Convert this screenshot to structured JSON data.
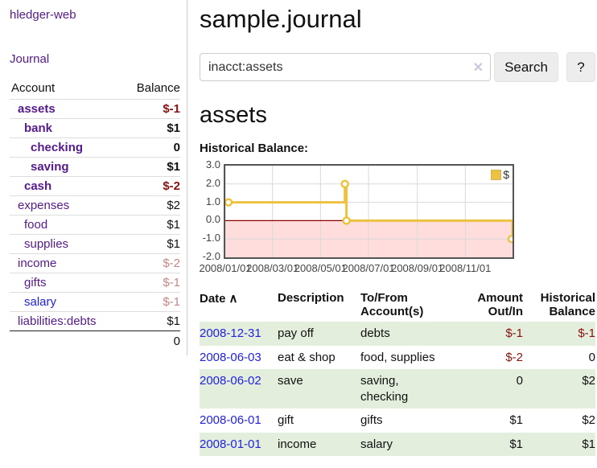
{
  "app": {
    "brand": "hledger-web"
  },
  "sidebar": {
    "journal_link": "Journal",
    "header": {
      "account": "Account",
      "balance": "Balance"
    },
    "accounts": [
      {
        "name": "assets",
        "balance": "$-1",
        "indent": 1,
        "bold": true,
        "negative": "hard"
      },
      {
        "name": "bank",
        "balance": "$1",
        "indent": 2,
        "bold": true,
        "negative": "no"
      },
      {
        "name": "checking",
        "balance": "0",
        "indent": 3,
        "bold": true,
        "negative": "no"
      },
      {
        "name": "saving",
        "balance": "$1",
        "indent": 3,
        "bold": true,
        "negative": "no"
      },
      {
        "name": "cash",
        "balance": "$-2",
        "indent": 2,
        "bold": true,
        "negative": "hard"
      },
      {
        "name": "expenses",
        "balance": "$2",
        "indent": 1,
        "bold": false,
        "negative": "no"
      },
      {
        "name": "food",
        "balance": "$1",
        "indent": 2,
        "bold": false,
        "negative": "no"
      },
      {
        "name": "supplies",
        "balance": "$1",
        "indent": 2,
        "bold": false,
        "negative": "no"
      },
      {
        "name": "income",
        "balance": "$-2",
        "indent": 1,
        "bold": false,
        "negative": "soft"
      },
      {
        "name": "gifts",
        "balance": "$-1",
        "indent": 2,
        "bold": false,
        "negative": "soft"
      },
      {
        "name": "salary",
        "balance": "$-1",
        "indent": 2,
        "bold": false,
        "negative": "soft",
        "blue": true
      },
      {
        "name": "liabilities:debts",
        "balance": "$1",
        "indent": 1,
        "bold": false,
        "negative": "no"
      }
    ],
    "total": "0"
  },
  "main": {
    "title": "sample.journal",
    "search": {
      "value": "inacct:assets",
      "clear_icon": "✕",
      "button": "Search",
      "help_button": "?"
    },
    "account_heading": "assets",
    "chart_heading": "Historical Balance:"
  },
  "chart_data": {
    "type": "line",
    "step": true,
    "title": "Historical Balance:",
    "ylim": [
      -2.0,
      3.0
    ],
    "yticks": [
      3.0,
      2.0,
      1.0,
      0.0,
      -1.0,
      -2.0
    ],
    "ytick_labels": [
      "3.0",
      "2.0",
      "1.0",
      "0.0",
      "-1.0",
      "-2.0"
    ],
    "xtick_labels": [
      "2008/01/01",
      "2008/03/01",
      "2008/05/01",
      "2008/07/01",
      "2008/09/01",
      "2008/11/01"
    ],
    "x_start": "2008-01-01",
    "x_end": "2008-12-31",
    "grid": true,
    "legend": {
      "label": "$",
      "position": "top-right"
    },
    "colors": {
      "line": "#edc240",
      "negative_region": "#ffdddd",
      "zero_line": "#8b0000",
      "grid": "#d9d9d9"
    },
    "series": [
      {
        "name": "$",
        "points": [
          [
            "2008-01-01",
            1
          ],
          [
            "2008-06-01",
            2
          ],
          [
            "2008-06-03",
            0
          ],
          [
            "2008-12-31",
            -1
          ]
        ]
      }
    ]
  },
  "register": {
    "headers": {
      "date": "Date",
      "description": "Description",
      "accounts": "To/From Account(s)",
      "amount": "Amount Out/In",
      "balance": "Historical Balance",
      "sort_caret": "∧"
    },
    "rows": [
      {
        "date": "2008-12-31",
        "description": "pay off",
        "accounts": "debts",
        "amount": "$-1",
        "amount_neg": true,
        "balance": "$-1",
        "balance_neg": true
      },
      {
        "date": "2008-06-03",
        "description": "eat & shop",
        "accounts": "food, supplies",
        "amount": "$-2",
        "amount_neg": true,
        "balance": "0",
        "balance_neg": false
      },
      {
        "date": "2008-06-02",
        "description": "save",
        "accounts": "saving, checking",
        "amount": "0",
        "amount_neg": false,
        "balance": "$2",
        "balance_neg": false
      },
      {
        "date": "2008-06-01",
        "description": "gift",
        "accounts": "gifts",
        "amount": "$1",
        "amount_neg": false,
        "balance": "$2",
        "balance_neg": false
      },
      {
        "date": "2008-01-01",
        "description": "income",
        "accounts": "salary",
        "amount": "$1",
        "amount_neg": false,
        "balance": "$1",
        "balance_neg": false
      }
    ]
  }
}
